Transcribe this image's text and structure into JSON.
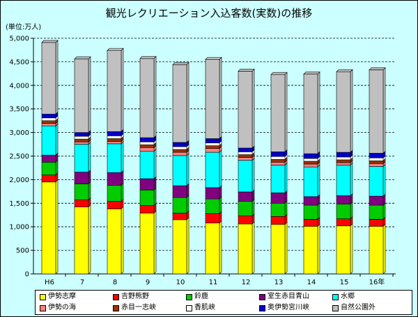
{
  "chart_data": {
    "type": "bar",
    "stacked": true,
    "title": "観光レクリエーション入込客数(実数)の推移",
    "unit_label": "(単位:万人)",
    "categories": [
      "H6",
      "7",
      "8",
      "9",
      "10",
      "11",
      "12",
      "13",
      "14",
      "15",
      "16年"
    ],
    "ylim": [
      0,
      5000
    ],
    "yticks": [
      "0",
      "500",
      "1,000",
      "1,500",
      "2,000",
      "2,500",
      "3,000",
      "3,500",
      "4,000",
      "4,500",
      "5,000"
    ],
    "ytick_values": [
      0,
      500,
      1000,
      1500,
      2000,
      2500,
      3000,
      3500,
      4000,
      4500,
      5000
    ],
    "grid": "horizontal-dashed",
    "legend_position": "bottom",
    "series": [
      {
        "name": "伊勢志摩",
        "color": "#ffff00",
        "values": [
          1950,
          1420,
          1380,
          1290,
          1150,
          1080,
          1060,
          1050,
          1010,
          1020,
          1010
        ]
      },
      {
        "name": "吉野熊野",
        "color": "#ff0000",
        "values": [
          150,
          150,
          160,
          160,
          140,
          200,
          170,
          170,
          150,
          150,
          150
        ]
      },
      {
        "name": "鈴鹿",
        "color": "#00cc00",
        "values": [
          270,
          340,
          340,
          330,
          330,
          310,
          310,
          280,
          300,
          310,
          300
        ]
      },
      {
        "name": "室生赤目青山",
        "color": "#800080",
        "values": [
          150,
          250,
          270,
          240,
          250,
          240,
          200,
          220,
          180,
          180,
          190
        ]
      },
      {
        "name": "水郷",
        "color": "#00ffff",
        "values": [
          620,
          590,
          610,
          580,
          640,
          750,
          670,
          590,
          630,
          650,
          630
        ]
      },
      {
        "name": "伊勢の海",
        "color": "#ff8080",
        "values": [
          50,
          50,
          50,
          80,
          70,
          80,
          60,
          60,
          60,
          50,
          60
        ]
      },
      {
        "name": "赤目一志峡",
        "color": "#993300",
        "values": [
          60,
          60,
          60,
          60,
          60,
          60,
          60,
          60,
          60,
          60,
          60
        ]
      },
      {
        "name": "香肌峡",
        "color": "#ffffff",
        "values": [
          60,
          60,
          60,
          60,
          60,
          60,
          60,
          60,
          60,
          60,
          60
        ]
      },
      {
        "name": "奥伊勢宮川峡",
        "color": "#0000cc",
        "values": [
          80,
          80,
          90,
          90,
          90,
          90,
          80,
          100,
          100,
          100,
          100
        ]
      },
      {
        "name": "自然公園外",
        "color": "#c0c0c0",
        "values": [
          1520,
          1560,
          1720,
          1680,
          1650,
          1680,
          1630,
          1640,
          1690,
          1710,
          1770
        ]
      }
    ]
  }
}
